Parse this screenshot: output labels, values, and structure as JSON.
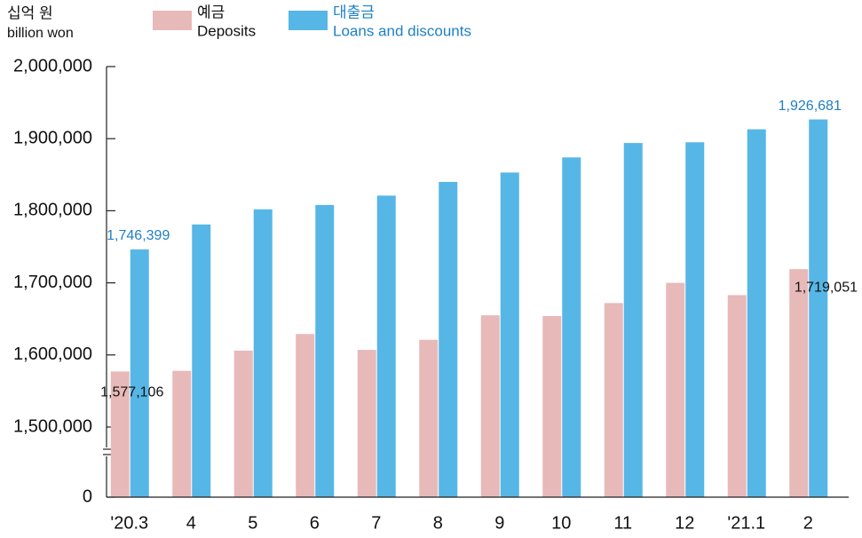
{
  "chart_data": {
    "type": "bar",
    "y_unit": "십억 원",
    "y_unit_en": "billion won",
    "categories": [
      "'20.3",
      "4",
      "5",
      "6",
      "7",
      "8",
      "9",
      "10",
      "11",
      "12",
      "'21.1",
      "2"
    ],
    "series": [
      {
        "name": "예금",
        "name_en": "Deposits",
        "color": "#e8b9b9",
        "values": [
          1577106,
          1578000,
          1606000,
          1629000,
          1607000,
          1621000,
          1655000,
          1654000,
          1672000,
          1700000,
          1683000,
          1719051
        ],
        "value_labels": [
          "1,577,106",
          null,
          null,
          null,
          null,
          null,
          null,
          null,
          null,
          null,
          null,
          "1,719,051"
        ]
      },
      {
        "name": "대출금",
        "name_en": "Loans and discounts",
        "color": "#56b6e6",
        "values": [
          1746399,
          1781000,
          1802000,
          1808000,
          1821000,
          1840000,
          1853000,
          1874000,
          1894000,
          1895000,
          1913000,
          1926681
        ],
        "value_labels": [
          "1,746,399",
          null,
          null,
          null,
          null,
          null,
          null,
          null,
          null,
          null,
          null,
          "1,926,681"
        ]
      }
    ],
    "ylim": [
      0,
      2000000
    ],
    "yticks": [
      0,
      {
        "value": 1500000,
        "label": "1,500,000"
      },
      {
        "value": 1600000,
        "label": "1,600,000"
      },
      {
        "value": 1700000,
        "label": "1,700,000"
      },
      {
        "value": 1800000,
        "label": "1,800,000"
      },
      {
        "value": 1900000,
        "label": "1,900,000"
      },
      {
        "value": 2000000,
        "label": "2,000,000"
      }
    ],
    "axis_break": true,
    "grid": false
  }
}
